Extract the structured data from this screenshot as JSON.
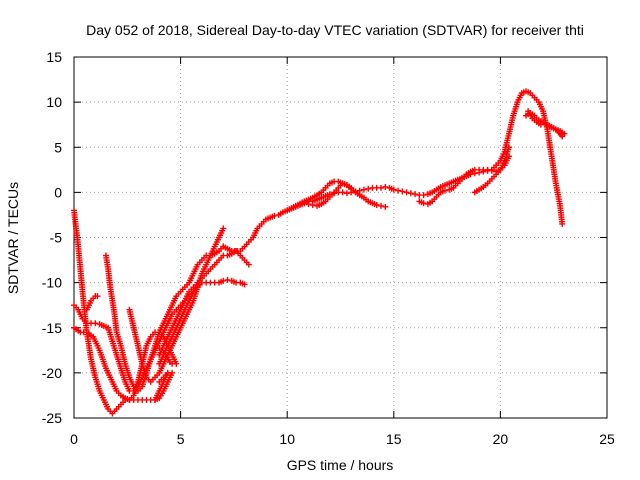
{
  "chart_data": {
    "type": "scatter",
    "title": "Day 052 of 2018, Sidereal Day-to-day VTEC variation (SDTVAR) for receiver thti",
    "xlabel": "GPS time / hours",
    "ylabel": "SDTVAR / TECUs",
    "xlim": [
      0,
      25
    ],
    "ylim": [
      -25,
      15
    ],
    "x_ticks": [
      "0",
      "5",
      "10",
      "15",
      "20",
      "25"
    ],
    "y_ticks": [
      "15",
      "10",
      "5",
      "0",
      "-5",
      "-10",
      "-15",
      "-20",
      "-25"
    ],
    "grid": true,
    "legend": "none",
    "marker": "+",
    "color": "#ff0000",
    "series": [
      {
        "x": [
          0.0,
          0.2,
          0.4,
          0.6,
          0.8,
          1.0,
          1.2,
          1.4,
          1.6,
          1.8,
          2.0,
          2.2,
          2.4,
          2.6
        ],
        "y": [
          -2.0,
          -6.0,
          -11.0,
          -15.5,
          -18.5,
          -20.5,
          -22.0,
          -23.0,
          -24.0,
          -24.5,
          -24.0,
          -23.5,
          -23.0,
          -23.0
        ]
      },
      {
        "x": [
          2.6,
          2.8,
          3.0,
          3.2,
          3.4,
          3.6,
          3.8,
          4.0,
          4.2,
          4.4,
          4.6,
          4.8,
          5.0,
          5.2,
          5.4,
          5.6,
          5.8,
          6.0,
          6.2,
          6.4,
          6.6,
          6.8,
          7.0,
          7.2,
          7.4,
          7.6,
          7.8,
          8.0
        ],
        "y": [
          -23.0,
          -22.5,
          -21.5,
          -20.5,
          -19.5,
          -18.5,
          -17.5,
          -16.5,
          -15.5,
          -14.5,
          -13.5,
          -13.0,
          -12.5,
          -12.0,
          -11.5,
          -11.0,
          -10.5,
          -10.0,
          -10.0,
          -10.0,
          -10.0,
          -10.0,
          -9.8,
          -9.7,
          -9.8,
          -10.0,
          -10.0,
          -10.2
        ]
      },
      {
        "x": [
          0.0,
          0.3,
          0.6,
          0.9,
          1.2,
          1.5,
          1.8,
          2.0,
          2.2,
          2.4,
          2.6,
          2.8,
          3.0,
          3.2,
          3.4,
          3.6,
          3.8,
          4.0,
          4.2,
          4.4,
          4.6
        ],
        "y": [
          -15.0,
          -15.5,
          -15.5,
          -16.0,
          -17.5,
          -19.5,
          -21.0,
          -22.0,
          -22.5,
          -22.8,
          -23.0,
          -23.0,
          -23.0,
          -23.0,
          -23.0,
          -23.0,
          -23.0,
          -22.8,
          -22.0,
          -21.0,
          -20.0
        ]
      },
      {
        "x": [
          0.0,
          0.2,
          0.4,
          0.6,
          0.8,
          1.0,
          1.2,
          1.4,
          1.6,
          1.8,
          2.0,
          2.2,
          2.4,
          2.6,
          2.8,
          3.0,
          3.2,
          3.4,
          3.6,
          3.8,
          4.0,
          4.2,
          4.4,
          4.6,
          4.8
        ],
        "y": [
          -12.5,
          -13.0,
          -14.0,
          -14.5,
          -14.5,
          -14.5,
          -14.6,
          -14.8,
          -15.0,
          -16.5,
          -18.0,
          -19.5,
          -21.0,
          -22.0,
          -22.0,
          -21.0,
          -19.0,
          -17.0,
          -16.0,
          -15.5,
          -15.5,
          -16.0,
          -17.0,
          -18.0,
          -19.0
        ]
      },
      {
        "x": [
          0.6,
          0.8,
          1.0,
          1.1
        ],
        "y": [
          -13.0,
          -12.0,
          -11.5,
          -11.5
        ]
      },
      {
        "x": [
          1.5,
          1.6,
          1.7,
          1.8,
          1.9,
          2.0,
          2.2,
          2.4,
          2.6,
          2.8,
          3.0,
          3.2,
          3.4,
          3.6,
          3.8,
          4.0,
          4.2,
          4.4,
          4.6,
          4.8,
          5.0,
          5.2,
          5.4,
          5.6,
          5.8,
          6.0,
          6.2,
          6.4,
          6.6,
          6.8,
          7.0
        ],
        "y": [
          -7.0,
          -8.5,
          -10.5,
          -12.0,
          -13.5,
          -15.5,
          -17.0,
          -19.0,
          -20.5,
          -21.5,
          -22.0,
          -21.5,
          -20.0,
          -18.5,
          -17.0,
          -15.5,
          -14.5,
          -13.5,
          -12.5,
          -11.5,
          -11.0,
          -10.5,
          -10.0,
          -9.0,
          -8.0,
          -7.5,
          -7.0,
          -7.0,
          -6.8,
          -6.5,
          -6.0
        ]
      },
      {
        "x": [
          2.6,
          2.8,
          3.0,
          3.2,
          3.4,
          3.6,
          3.8,
          4.0,
          4.2,
          4.4,
          4.6,
          4.8,
          5.0,
          5.2,
          5.4,
          5.6,
          5.8,
          6.0,
          6.2,
          6.4,
          6.6,
          6.8,
          7.0
        ],
        "y": [
          -13.0,
          -15.0,
          -17.0,
          -19.0,
          -20.5,
          -21.0,
          -20.5,
          -20.0,
          -19.0,
          -18.0,
          -17.0,
          -16.0,
          -15.0,
          -14.0,
          -13.0,
          -12.0,
          -10.5,
          -9.0,
          -8.0,
          -7.0,
          -6.0,
          -5.0,
          -4.0
        ]
      },
      {
        "x": [
          4.0,
          4.2,
          4.4,
          4.6,
          4.8,
          5.0,
          5.2,
          5.4,
          5.6
        ],
        "y": [
          -18.0,
          -17.0,
          -16.0,
          -15.0,
          -14.0,
          -13.0,
          -12.0,
          -11.0,
          -10.5
        ]
      },
      {
        "x": [
          3.9,
          4.1,
          4.3,
          4.5,
          4.6
        ],
        "y": [
          -17.0,
          -17.5,
          -18.0,
          -18.8,
          -19.0
        ]
      },
      {
        "x": [
          4.0,
          4.2,
          4.4,
          4.6,
          4.8,
          5.0,
          5.2,
          5.4,
          5.6,
          5.8,
          6.0,
          6.2,
          6.4,
          6.6,
          6.8,
          7.0,
          7.2,
          7.4,
          7.6,
          7.8,
          8.0,
          8.2
        ],
        "y": [
          -19.0,
          -18.0,
          -17.0,
          -16.0,
          -15.0,
          -14.0,
          -13.0,
          -12.0,
          -11.0,
          -10.0,
          -9.5,
          -9.0,
          -8.5,
          -8.0,
          -7.5,
          -7.0,
          -7.0,
          -6.8,
          -6.5,
          -7.0,
          -7.5,
          -8.0
        ]
      },
      {
        "x": [
          3.8,
          4.0,
          4.1,
          4.2,
          4.4
        ],
        "y": [
          -23.0,
          -22.0,
          -21.5,
          -21.0,
          -20.0
        ]
      },
      {
        "x": [
          4.0,
          4.2,
          4.4
        ],
        "y": [
          -21.0,
          -20.5,
          -20.0
        ]
      },
      {
        "x": [
          7.0,
          7.4,
          7.8,
          8.0,
          8.2,
          8.4,
          8.6,
          8.8,
          9.0,
          9.2,
          9.4,
          9.6,
          9.8,
          10.0,
          10.2,
          10.4,
          10.6,
          10.8,
          11.0,
          11.2,
          11.4,
          11.6,
          11.8,
          12.0,
          12.2,
          12.4,
          12.6,
          12.8,
          13.0,
          13.2,
          13.4,
          13.6,
          13.8,
          14.0,
          14.2,
          14.4,
          14.6,
          14.8,
          15.0,
          15.2,
          15.4,
          15.6,
          15.8,
          16.0,
          16.2,
          16.4,
          16.6,
          16.8,
          17.0,
          17.2,
          17.4,
          17.6,
          17.8,
          18.0,
          18.2,
          18.4,
          18.6,
          18.8,
          19.0,
          19.2,
          19.4,
          19.6,
          19.8,
          20.0,
          20.2,
          20.4,
          20.6,
          20.8,
          21.0,
          21.2,
          21.4,
          21.6,
          21.8,
          22.0,
          22.2,
          22.4,
          22.6,
          22.8,
          22.9
        ],
        "y": [
          -6.0,
          -6.5,
          -6.5,
          -6.0,
          -5.5,
          -5.0,
          -4.0,
          -3.5,
          -3.0,
          -2.8,
          -2.6,
          -2.5,
          -2.2,
          -2.0,
          -1.8,
          -1.6,
          -1.4,
          -1.2,
          -1.0,
          -1.0,
          -0.8,
          -0.6,
          -0.4,
          -0.2,
          -0.1,
          0.0,
          0.0,
          -0.1,
          0.0,
          0.1,
          0.2,
          0.3,
          0.4,
          0.5,
          0.5,
          0.5,
          0.6,
          0.5,
          0.3,
          0.2,
          0.1,
          0.0,
          -0.1,
          -0.2,
          -0.3,
          -0.3,
          -0.2,
          0.0,
          0.3,
          0.6,
          0.8,
          1.0,
          1.2,
          1.4,
          1.6,
          1.8,
          2.0,
          2.1,
          2.2,
          2.3,
          2.4,
          2.5,
          3.0,
          3.5,
          4.5,
          6.5,
          8.5,
          10.0,
          11.0,
          11.2,
          11.0,
          10.5,
          10.0,
          9.0,
          7.0,
          4.0,
          1.0,
          -1.5,
          -3.5
        ]
      },
      {
        "x": [
          10.0,
          10.4,
          10.8,
          11.0,
          11.2,
          11.4,
          11.6,
          11.8,
          12.0,
          12.2,
          12.4,
          12.6,
          12.8,
          13.0,
          13.2,
          13.4,
          13.6,
          13.8,
          14.0,
          14.2,
          14.4,
          14.6
        ],
        "y": [
          -2.0,
          -1.5,
          -1.0,
          -0.8,
          -0.6,
          -0.3,
          0.0,
          0.5,
          1.0,
          1.2,
          1.2,
          1.0,
          0.8,
          0.4,
          0.0,
          -0.3,
          -0.6,
          -1.0,
          -1.2,
          -1.4,
          -1.5,
          -1.6
        ]
      },
      {
        "x": [
          10.8,
          11.0,
          11.2,
          11.4,
          11.6,
          11.8,
          12.0,
          12.2,
          12.4,
          12.6,
          12.8,
          13.0
        ],
        "y": [
          -1.2,
          -1.3,
          -1.4,
          -1.5,
          -1.3,
          -1.0,
          -0.5,
          0.0,
          0.5,
          1.0,
          0.8,
          0.5
        ]
      },
      {
        "x": [
          16.2,
          16.4,
          16.6,
          16.8,
          17.0,
          17.2,
          17.4,
          17.6,
          17.8,
          18.0,
          18.2,
          18.4,
          18.6,
          18.8,
          19.0,
          19.2,
          19.4,
          19.6,
          19.8,
          20.0,
          20.2,
          20.4
        ],
        "y": [
          -1.0,
          -1.2,
          -1.3,
          -1.0,
          -0.5,
          0.0,
          0.2,
          0.3,
          0.5,
          1.0,
          1.5,
          2.0,
          2.3,
          2.5,
          2.5,
          2.5,
          2.5,
          2.4,
          2.3,
          2.5,
          3.0,
          4.0
        ]
      },
      {
        "x": [
          18.8,
          19.0,
          19.2,
          19.4,
          19.6,
          19.8,
          20.0,
          20.2,
          20.4
        ],
        "y": [
          0.0,
          0.3,
          0.6,
          1.0,
          1.5,
          2.0,
          2.5,
          3.5,
          5.0
        ]
      },
      {
        "x": [
          21.2,
          21.4,
          21.6,
          21.8,
          22.0,
          22.2,
          22.4,
          22.6,
          22.8,
          23.0
        ],
        "y": [
          8.5,
          8.8,
          8.5,
          8.0,
          7.8,
          7.5,
          7.2,
          7.0,
          6.8,
          6.5
        ]
      },
      {
        "x": [
          21.3,
          21.5,
          21.7,
          21.9,
          22.1,
          22.3,
          22.5,
          22.7,
          22.9
        ],
        "y": [
          9.0,
          8.2,
          7.8,
          7.5,
          7.6,
          7.4,
          7.1,
          6.8,
          6.2
        ]
      }
    ]
  }
}
